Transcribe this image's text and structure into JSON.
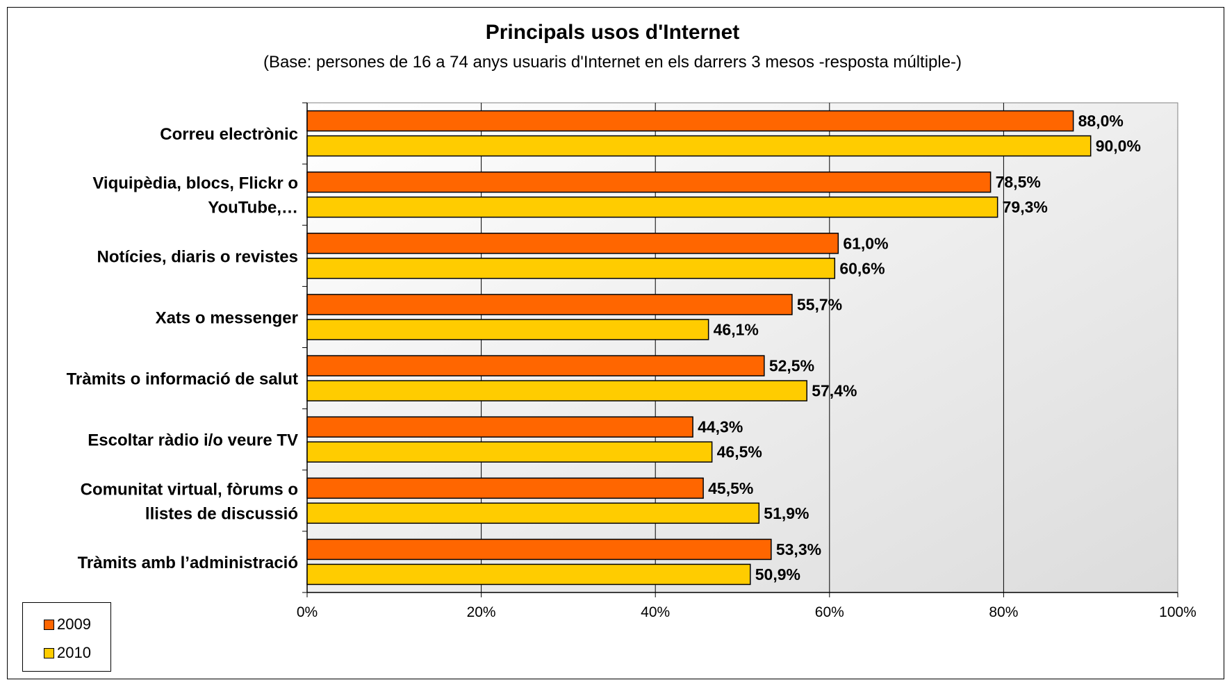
{
  "chart_data": {
    "type": "bar",
    "orientation": "horizontal",
    "title": "Principals usos d'Internet",
    "subtitle": "(Base: persones de 16 a 74 anys usuaris d'Internet en els darrers 3 mesos -resposta múltiple-)",
    "categories": [
      "Correu electrònic",
      "Viquipèdia, blocs, Flickr o YouTube,…",
      "Notícies, diaris o revistes",
      "Xats o messenger",
      "Tràmits o informació de salut",
      "Escoltar ràdio i/o veure TV",
      "Comunitat virtual, fòrums o llistes de discussió",
      "Tràmits amb l’administració"
    ],
    "category_lines": [
      [
        "Correu electrònic"
      ],
      [
        "Viquipèdia, blocs, Flickr o",
        "YouTube,…"
      ],
      [
        "Notícies, diaris o revistes"
      ],
      [
        "Xats o messenger"
      ],
      [
        "Tràmits o informació de salut"
      ],
      [
        "Escoltar ràdio i/o veure TV"
      ],
      [
        "Comunitat virtual, fòrums o",
        "llistes de discussió"
      ],
      [
        "Tràmits amb l’administració"
      ]
    ],
    "series": [
      {
        "name": "2009",
        "color": "#ff6600",
        "values": [
          88.0,
          78.5,
          61.0,
          55.7,
          52.5,
          44.3,
          45.5,
          53.3
        ],
        "labels": [
          "88,0%",
          "78,5%",
          "61,0%",
          "55,7%",
          "52,5%",
          "44,3%",
          "45,5%",
          "53,3%"
        ]
      },
      {
        "name": "2010",
        "color": "#ffcc00",
        "values": [
          90.0,
          79.3,
          60.6,
          46.1,
          57.4,
          46.5,
          51.9,
          50.9
        ],
        "labels": [
          "90,0%",
          "79,3%",
          "60,6%",
          "46,1%",
          "57,4%",
          "46,5%",
          "51,9%",
          "50,9%"
        ]
      }
    ],
    "xlim": [
      0,
      100
    ],
    "xticks": [
      0,
      20,
      40,
      60,
      80,
      100
    ],
    "xtick_labels": [
      "0%",
      "20%",
      "40%",
      "60%",
      "80%",
      "100%"
    ],
    "grid": "vertical",
    "legend_position": "bottom-left"
  }
}
